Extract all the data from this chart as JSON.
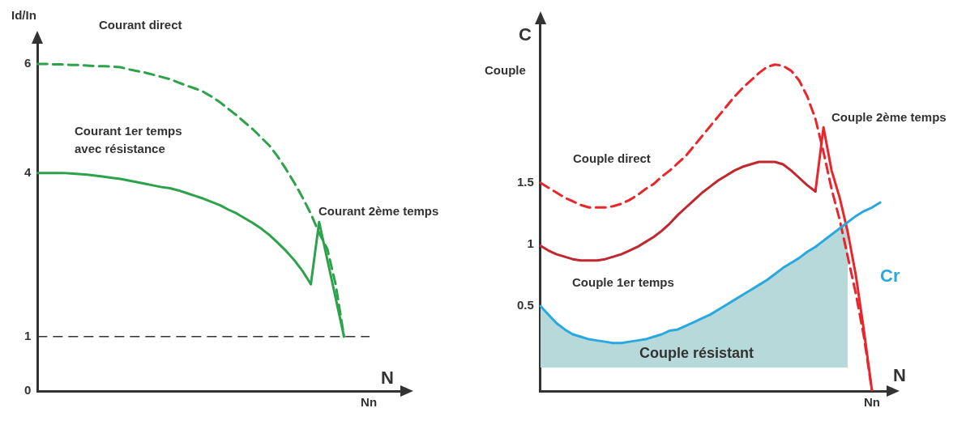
{
  "chart_data": [
    {
      "type": "line",
      "xlabel": "N",
      "ylabel": "Id/In",
      "categories": [
        null,
        null,
        null,
        null,
        null,
        null,
        null,
        null,
        null,
        null,
        null,
        null,
        null,
        null,
        null,
        null,
        null,
        null,
        null,
        null,
        null,
        null,
        null,
        null,
        null,
        null,
        null,
        null,
        null,
        null,
        null,
        null,
        null,
        null,
        null,
        null,
        null,
        null,
        null,
        null,
        "Nn",
        null,
        null,
        null,
        null
      ],
      "ylim": [
        0,
        6.4
      ],
      "yticks": [
        0,
        1,
        4,
        6
      ],
      "grid": false,
      "legend": false,
      "marker": "none",
      "series": [
        {
          "name": "Courant direct",
          "color": "#2ca24a",
          "line_style": "dashed",
          "values": [
            6,
            6,
            5.99,
            5.99,
            5.98,
            5.98,
            5.97,
            5.96,
            5.96,
            5.95,
            5.94,
            5.9,
            5.87,
            5.84,
            5.8,
            5.76,
            5.72,
            5.66,
            5.6,
            5.55,
            5.49,
            5.4,
            5.3,
            5.18,
            5.06,
            4.93,
            4.8,
            4.65,
            4.5,
            4.3,
            4.07,
            3.82,
            3.55,
            3.25,
            2.9,
            2.6,
            1.95,
            1.0,
            null,
            null,
            null,
            null,
            null,
            null,
            null
          ]
        },
        {
          "name": "Courant 1er temps\navec résistance",
          "color": "#2ca24a",
          "values": [
            4,
            4,
            4,
            4,
            3.99,
            3.98,
            3.97,
            3.95,
            3.93,
            3.91,
            3.89,
            3.86,
            3.83,
            3.8,
            3.77,
            3.74,
            3.72,
            3.68,
            3.63,
            3.58,
            3.53,
            3.47,
            3.41,
            3.33,
            3.26,
            3.17,
            3.08,
            2.98,
            2.86,
            2.72,
            2.57,
            2.4,
            2.2,
            1.96,
            null,
            null,
            null,
            null,
            null,
            null,
            null,
            null,
            null,
            null,
            null
          ]
        },
        {
          "name": "Courant 2ème temps",
          "color": "#2ca24a",
          "values": [
            null,
            null,
            null,
            null,
            null,
            null,
            null,
            null,
            null,
            null,
            null,
            null,
            null,
            null,
            null,
            null,
            null,
            null,
            null,
            null,
            null,
            null,
            null,
            null,
            null,
            null,
            null,
            null,
            null,
            null,
            null,
            null,
            null,
            1.96,
            3.1,
            2.4,
            1.7,
            1.0,
            null,
            null,
            null,
            null,
            null,
            null,
            null
          ]
        }
      ],
      "ref_lines": [
        {
          "axis": "y",
          "value": 1,
          "color": "#333333",
          "line_style": "dashed"
        }
      ]
    },
    {
      "type": "line",
      "xlabel": "N",
      "ylabel": "C",
      "categories": [
        null,
        null,
        null,
        null,
        null,
        null,
        null,
        null,
        null,
        null,
        null,
        null,
        null,
        null,
        null,
        null,
        null,
        null,
        null,
        null,
        null,
        null,
        null,
        null,
        null,
        null,
        null,
        null,
        null,
        null,
        null,
        null,
        null,
        null,
        null,
        null,
        null,
        null,
        null,
        null,
        null,
        "Nn",
        null,
        null
      ],
      "ylim": [
        -0.19,
        2.8
      ],
      "yticks": [
        0.5,
        1,
        1.5
      ],
      "grid": false,
      "legend": false,
      "marker": "none",
      "annotations": [
        "Couple"
      ],
      "series": [
        {
          "name": "Couple résistant",
          "type": "area",
          "color": "#b7d9da",
          "values": [
            0.5,
            0.43,
            0.36,
            0.31,
            0.27,
            0.25,
            0.23,
            0.22,
            0.21,
            0.2,
            0.2,
            0.21,
            0.22,
            0.23,
            0.25,
            0.27,
            0.3,
            0.31,
            0.34,
            0.37,
            0.4,
            0.43,
            0.47,
            0.51,
            0.55,
            0.59,
            0.63,
            0.67,
            0.71,
            0.76,
            0.81,
            0.85,
            0.89,
            0.94,
            0.98,
            1.03,
            1.08,
            1.13,
            1.18,
            null,
            null,
            null,
            null,
            null
          ]
        },
        {
          "name": "Cr",
          "color": "#29a8e0",
          "values": [
            0.5,
            0.43,
            0.36,
            0.31,
            0.27,
            0.25,
            0.23,
            0.22,
            0.21,
            0.2,
            0.2,
            0.21,
            0.22,
            0.23,
            0.25,
            0.27,
            0.3,
            0.31,
            0.34,
            0.37,
            0.4,
            0.43,
            0.47,
            0.51,
            0.55,
            0.59,
            0.63,
            0.67,
            0.71,
            0.76,
            0.81,
            0.85,
            0.89,
            0.94,
            0.98,
            1.03,
            1.08,
            1.13,
            1.18,
            1.23,
            1.27,
            1.3,
            1.34,
            null
          ]
        },
        {
          "name": "Couple direct",
          "color": "#e8262c",
          "line_style": "dashed",
          "values": [
            1.5,
            1.46,
            1.42,
            1.38,
            1.35,
            1.32,
            1.3,
            1.3,
            1.3,
            1.31,
            1.33,
            1.36,
            1.4,
            1.45,
            1.49,
            1.55,
            1.6,
            1.66,
            1.72,
            1.8,
            1.88,
            1.96,
            2.04,
            2.12,
            2.2,
            2.27,
            2.33,
            2.39,
            2.44,
            2.46,
            2.45,
            2.41,
            2.33,
            2.2,
            2.02,
            1.75,
            1.45,
            1.2,
            0.9,
            0.6,
            0.25,
            -0.19,
            null,
            null
          ]
        },
        {
          "name": "Couple 1er temps",
          "color": "#c1272d",
          "values": [
            0.99,
            0.95,
            0.92,
            0.9,
            0.88,
            0.87,
            0.87,
            0.87,
            0.88,
            0.9,
            0.92,
            0.95,
            0.98,
            1.02,
            1.06,
            1.11,
            1.17,
            1.24,
            1.3,
            1.36,
            1.42,
            1.47,
            1.52,
            1.56,
            1.6,
            1.63,
            1.65,
            1.67,
            1.67,
            1.67,
            1.65,
            1.6,
            1.54,
            1.48,
            1.43,
            null,
            null,
            null,
            null,
            null,
            null,
            null,
            null,
            null
          ]
        },
        {
          "name": "Couple 2ème temps",
          "color": "#e8262c",
          "values": [
            null,
            null,
            null,
            null,
            null,
            null,
            null,
            null,
            null,
            null,
            null,
            null,
            null,
            null,
            null,
            null,
            null,
            null,
            null,
            null,
            null,
            null,
            null,
            null,
            null,
            null,
            null,
            null,
            null,
            null,
            null,
            null,
            null,
            null,
            1.43,
            1.95,
            1.6,
            1.38,
            1.1,
            0.75,
            0.3,
            -0.19,
            null,
            null
          ]
        }
      ]
    }
  ]
}
